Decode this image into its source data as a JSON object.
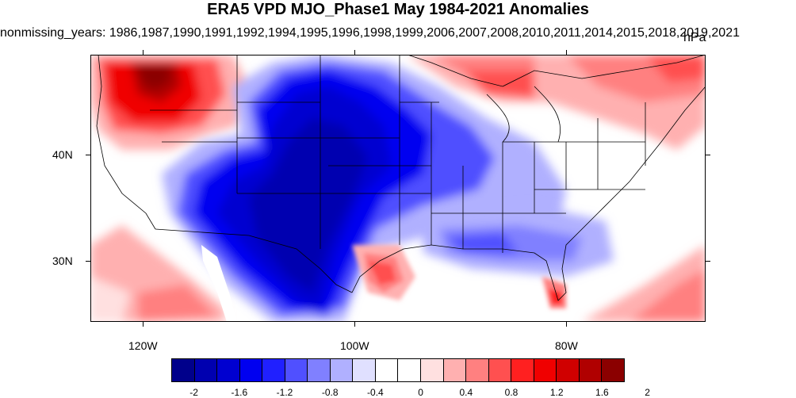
{
  "title": "ERA5 VPD MJO_Phase1 May 1984-2021 Anomalies",
  "subtitle": "nonmissing_years: 1986,1987,1990,1991,1992,1994,1995,1996,1998,1999,2006,2007,2008,2010,2011,2014,2015,2018,2019,2021",
  "units": "hPa",
  "axes": {
    "y_labels": [
      "40N",
      "30N"
    ],
    "x_labels": [
      "120W",
      "100W",
      "80W"
    ]
  },
  "colorbar": {
    "colors": [
      "#00008b",
      "#0000b0",
      "#0000d0",
      "#0000f0",
      "#2020ff",
      "#5050ff",
      "#8080ff",
      "#b0b0ff",
      "#e0e0ff",
      "#ffffff",
      "#ffffff",
      "#ffe0e0",
      "#ffb0b0",
      "#ff8080",
      "#ff5050",
      "#ff2020",
      "#f00000",
      "#d00000",
      "#b00000",
      "#8b0000"
    ],
    "labels": [
      "-2",
      "-1.6",
      "-1.2",
      "-0.8",
      "-0.4",
      "0",
      "0.4",
      "0.8",
      "1.2",
      "1.6",
      "2"
    ]
  },
  "chart_data": {
    "type": "heatmap",
    "variable": "VPD anomaly",
    "units": "hPa",
    "colorbar_levels": [
      -2,
      -1.8,
      -1.6,
      -1.4,
      -1.2,
      -1.0,
      -0.8,
      -0.6,
      -0.4,
      -0.2,
      0,
      0.2,
      0.4,
      0.6,
      0.8,
      1.0,
      1.2,
      1.6,
      1.8,
      2
    ],
    "lon_range": [
      -125,
      -67
    ],
    "lat_range": [
      24,
      49
    ]
  }
}
